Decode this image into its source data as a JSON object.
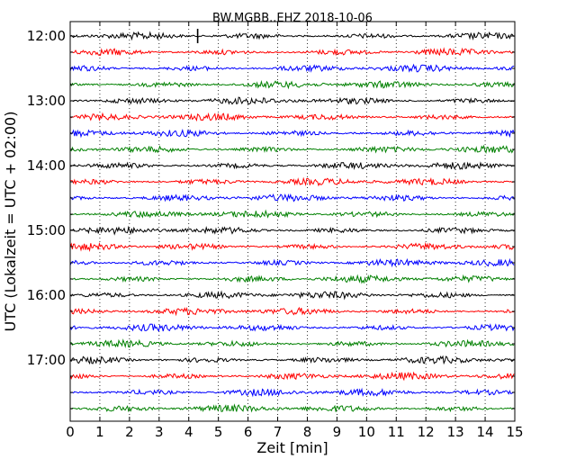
{
  "chart_data": {
    "type": "line",
    "title": "BW.MGBB..EHZ 2018-10-06",
    "xlabel": "Zeit  [min]",
    "ylabel": "UTC (Lokalzeit = UTC + 02:00)",
    "xlim": [
      0,
      15
    ],
    "x_ticks": [
      0,
      1,
      2,
      3,
      4,
      5,
      6,
      7,
      8,
      9,
      10,
      11,
      12,
      13,
      14,
      15
    ],
    "y_tick_labels": [
      "12:00",
      "13:00",
      "14:00",
      "15:00",
      "16:00",
      "17:00"
    ],
    "grid": {
      "x": true,
      "y": false,
      "style": "dotted"
    },
    "trace_colors": [
      "#000000",
      "#ff0000",
      "#0000ff",
      "#008000"
    ],
    "trace_start_times": [
      "12:00",
      "12:15",
      "12:30",
      "12:45",
      "13:00",
      "13:15",
      "13:30",
      "13:45",
      "14:00",
      "14:15",
      "14:30",
      "14:45",
      "15:00",
      "15:15",
      "15:30",
      "15:45",
      "16:00",
      "16:15",
      "16:30",
      "16:45",
      "17:00",
      "17:15",
      "17:30",
      "17:45"
    ],
    "pick_marker": {
      "trace_start": "12:00",
      "x_min": 4.3
    }
  }
}
